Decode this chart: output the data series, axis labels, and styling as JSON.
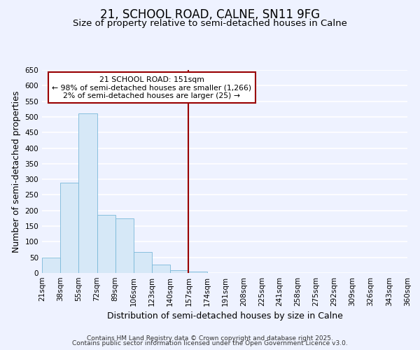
{
  "title": "21, SCHOOL ROAD, CALNE, SN11 9FG",
  "subtitle": "Size of property relative to semi-detached houses in Calne",
  "xlabel": "Distribution of semi-detached houses by size in Calne",
  "ylabel": "Number of semi-detached properties",
  "bar_edges": [
    21,
    38,
    55,
    72,
    89,
    106,
    123,
    140,
    157,
    174,
    191,
    208,
    225,
    241,
    258,
    275,
    292,
    309,
    326,
    343,
    360
  ],
  "bar_heights": [
    50,
    290,
    510,
    185,
    175,
    68,
    27,
    10,
    5,
    1,
    0,
    0,
    0,
    0,
    0,
    0,
    0,
    0,
    0,
    0
  ],
  "bar_facecolor": "#d6e8f7",
  "bar_edgecolor": "#7ab8d9",
  "vline_x": 157,
  "vline_color": "#990000",
  "annotation_title": "21 SCHOOL ROAD: 151sqm",
  "annotation_line1": "← 98% of semi-detached houses are smaller (1,266)",
  "annotation_line2": "2% of semi-detached houses are larger (25) →",
  "annotation_box_edgecolor": "#990000",
  "ylim": [
    0,
    650
  ],
  "yticks": [
    0,
    50,
    100,
    150,
    200,
    250,
    300,
    350,
    400,
    450,
    500,
    550,
    600,
    650
  ],
  "xtick_labels": [
    "21sqm",
    "38sqm",
    "55sqm",
    "72sqm",
    "89sqm",
    "106sqm",
    "123sqm",
    "140sqm",
    "157sqm",
    "174sqm",
    "191sqm",
    "208sqm",
    "225sqm",
    "241sqm",
    "258sqm",
    "275sqm",
    "292sqm",
    "309sqm",
    "326sqm",
    "343sqm",
    "360sqm"
  ],
  "footer1": "Contains HM Land Registry data © Crown copyright and database right 2025.",
  "footer2": "Contains public sector information licensed under the Open Government Licence v3.0.",
  "background_color": "#eef2ff",
  "grid_color": "#ffffff",
  "title_fontsize": 12,
  "subtitle_fontsize": 9.5,
  "axis_label_fontsize": 9,
  "tick_fontsize": 7.5,
  "footer_fontsize": 6.5
}
